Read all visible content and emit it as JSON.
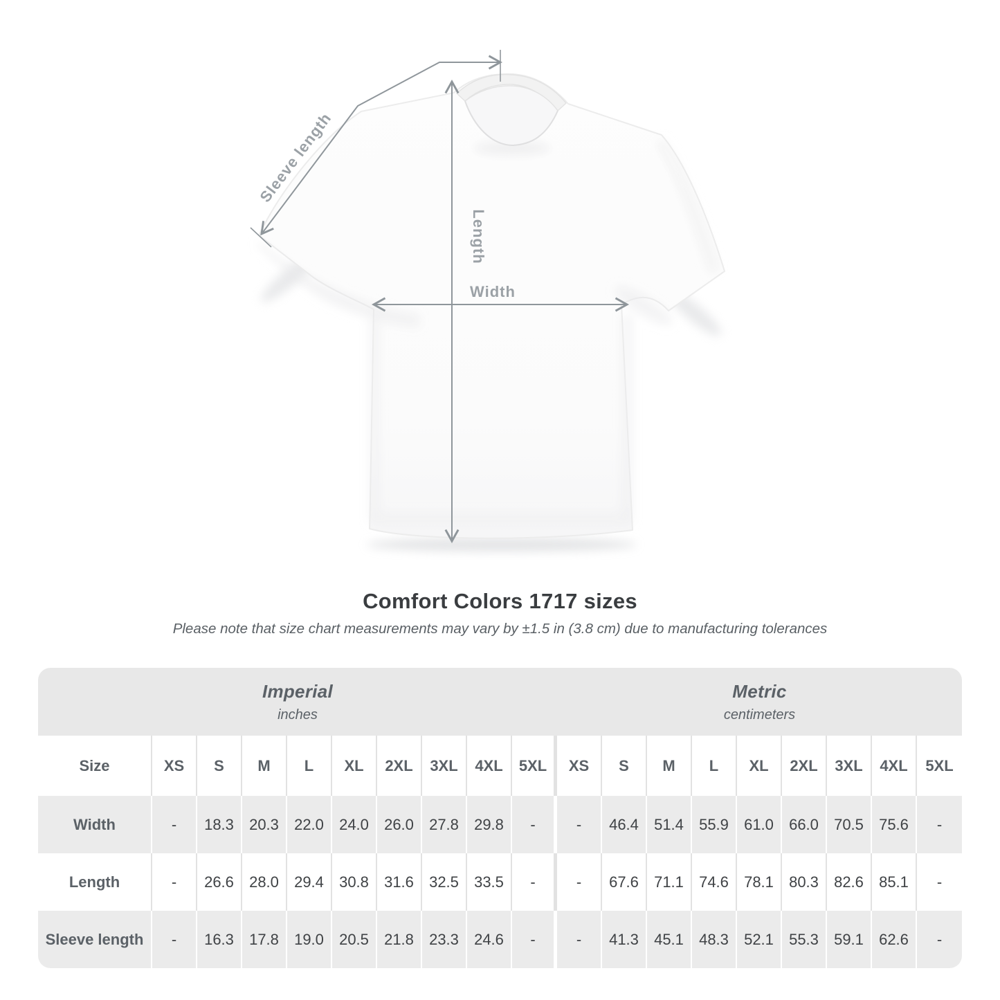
{
  "diagram": {
    "sleeve_label": "Sleeve length",
    "length_label": "Length",
    "width_label": "Width"
  },
  "title": "Comfort Colors 1717 sizes",
  "subtitle": "Please note that size chart measurements may vary by ±1.5 in (3.8 cm) due to manufacturing tolerances",
  "chart_data": {
    "type": "table",
    "title": "Comfort Colors 1717 sizes",
    "note": "Please note that size chart measurements may vary by ±1.5 in (3.8 cm) due to manufacturing tolerances",
    "unit_groups": [
      {
        "label": "Imperial",
        "sublabel": "inches"
      },
      {
        "label": "Metric",
        "sublabel": "centimeters"
      }
    ],
    "size_header": "Size",
    "sizes": [
      "XS",
      "S",
      "M",
      "L",
      "XL",
      "2XL",
      "3XL",
      "4XL",
      "5XL"
    ],
    "rows": [
      {
        "label": "Width",
        "imperial": [
          "-",
          "18.3",
          "20.3",
          "22.0",
          "24.0",
          "26.0",
          "27.8",
          "29.8",
          "-"
        ],
        "metric": [
          "-",
          "46.4",
          "51.4",
          "55.9",
          "61.0",
          "66.0",
          "70.5",
          "75.6",
          "-"
        ]
      },
      {
        "label": "Length",
        "imperial": [
          "-",
          "26.6",
          "28.0",
          "29.4",
          "30.8",
          "31.6",
          "32.5",
          "33.5",
          "-"
        ],
        "metric": [
          "-",
          "67.6",
          "71.1",
          "74.6",
          "78.1",
          "80.3",
          "82.6",
          "85.1",
          "-"
        ]
      },
      {
        "label": "Sleeve length",
        "imperial": [
          "-",
          "16.3",
          "17.8",
          "19.0",
          "20.5",
          "21.8",
          "23.3",
          "24.6",
          "-"
        ],
        "metric": [
          "-",
          "41.3",
          "45.1",
          "48.3",
          "52.1",
          "55.3",
          "59.1",
          "62.6",
          "-"
        ]
      }
    ]
  },
  "colors": {
    "dimension_line": "#8f969b",
    "dimension_label": "#9ba1a6",
    "header_band_bg": "#e8e8e8",
    "stripe_row_bg": "#ebebeb",
    "heading_text": "#5b6167",
    "value_text": "#3f4245",
    "title_text": "#3a3d40"
  }
}
